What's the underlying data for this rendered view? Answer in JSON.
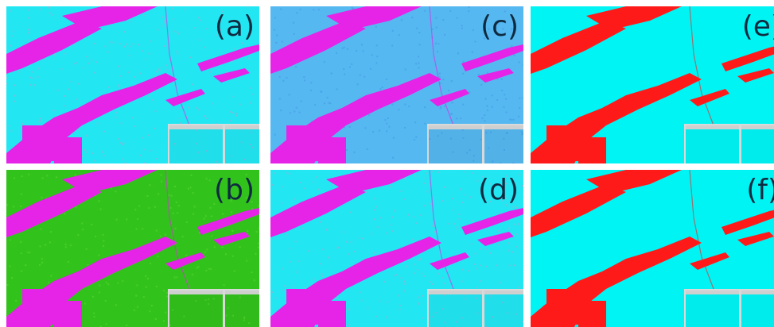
{
  "figure": {
    "panels": [
      {
        "id": "a",
        "label": "(a)",
        "background": "#22e6f2",
        "foreground": "#e524e8",
        "speckle": "#7fbcd8",
        "row": 0,
        "col": 0
      },
      {
        "id": "c",
        "label": "(c)",
        "background": "#55b8f0",
        "foreground": "#e524e8",
        "speckle": "#4aa0e8",
        "row": 0,
        "col": 1
      },
      {
        "id": "e",
        "label": "(e)",
        "background": "#00f4f4",
        "foreground": "#ff1a1a",
        "speckle": "#00f4f4",
        "row": 0,
        "col": 2
      },
      {
        "id": "b",
        "label": "(b)",
        "background": "#32c21c",
        "foreground": "#e524e8",
        "speckle": "#4fd22a",
        "row": 1,
        "col": 0
      },
      {
        "id": "d",
        "label": "(d)",
        "background": "#22e6f2",
        "foreground": "#e524e8",
        "speckle": "#7fbcd8",
        "row": 1,
        "col": 1
      },
      {
        "id": "f",
        "label": "(f)",
        "background": "#00f4f4",
        "foreground": "#ff1a1a",
        "speckle": "#00f4f4",
        "row": 1,
        "col": 2
      }
    ]
  }
}
